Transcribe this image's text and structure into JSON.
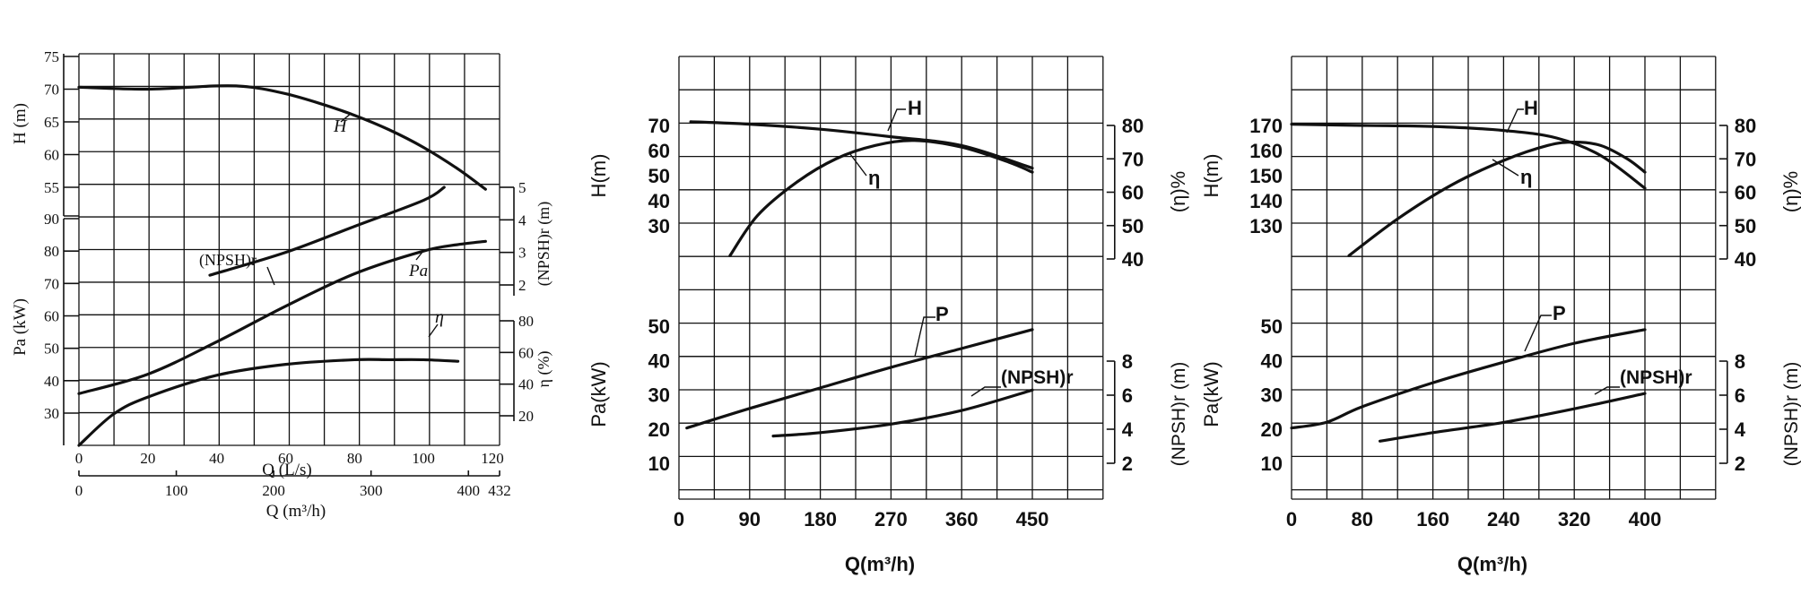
{
  "chart_data": [
    {
      "type": "line",
      "x_primary": {
        "label": "Q (L/s)",
        "range": [
          0,
          120
        ],
        "ticks": [
          0,
          20,
          40,
          60,
          80,
          100,
          120
        ]
      },
      "x_secondary": {
        "label": "Q (m³/h)",
        "ticks": [
          "0",
          "100",
          "200",
          "300",
          "400",
          "432"
        ]
      },
      "axes": {
        "H": {
          "label": "H (m)",
          "ticks": [
            55,
            60,
            65,
            70,
            75
          ],
          "range": [
            55,
            75
          ]
        },
        "Pa": {
          "label": "Pa (kW)",
          "ticks": [
            30,
            40,
            50,
            60,
            70,
            80,
            90
          ],
          "range": [
            25,
            90
          ]
        },
        "NPSH": {
          "label": "(NPSH)r (m)",
          "ticks": [
            2,
            3,
            4,
            5
          ],
          "range": [
            1,
            5
          ]
        },
        "eta": {
          "label": "η (%)",
          "ticks": [
            20,
            40,
            60,
            80
          ],
          "range": [
            0,
            80
          ]
        }
      },
      "grid": true,
      "series": [
        {
          "name": "H",
          "axis": "H",
          "x": [
            0,
            20,
            40,
            50,
            60,
            70,
            80,
            90,
            100,
            110,
            118
          ],
          "y": [
            70.3,
            70.0,
            70.5,
            70.3,
            69.3,
            67.8,
            66.0,
            63.8,
            61.1,
            57.8,
            54.7
          ]
        },
        {
          "name": "(NPSH)r",
          "axis": "NPSH",
          "x": [
            38,
            60,
            80,
            100,
            106
          ],
          "y": [
            2.3,
            3.0,
            3.8,
            4.6,
            5.0
          ]
        },
        {
          "name": "Pa",
          "axis": "Pa",
          "x": [
            0,
            20,
            40,
            60,
            80,
            100,
            110,
            118
          ],
          "y": [
            36,
            42,
            52,
            63,
            73,
            80,
            82,
            83
          ]
        },
        {
          "name": "η",
          "axis": "eta",
          "x": [
            0,
            10,
            20,
            40,
            60,
            80,
            90,
            100,
            110
          ],
          "y": [
            0,
            20,
            31,
            45,
            52,
            55,
            55,
            55,
            54
          ]
        }
      ]
    },
    {
      "type": "line",
      "x": {
        "label": "Q(m³/h)",
        "range": [
          0,
          540
        ],
        "ticks": [
          0,
          90,
          180,
          270,
          360,
          450
        ]
      },
      "axes": {
        "H": {
          "label": "H(m)",
          "ticks": [
            30,
            40,
            50,
            60,
            70
          ],
          "range": [
            30,
            70
          ]
        },
        "eta": {
          "label": "(η)%",
          "ticks": [
            40,
            50,
            60,
            70,
            80
          ],
          "range": [
            40,
            80
          ]
        },
        "Pa": {
          "label": "Pa(kW)",
          "ticks": [
            10,
            20,
            30,
            40,
            50
          ],
          "range": [
            10,
            50
          ]
        },
        "NPSH": {
          "label": "(NPSH)r (m)",
          "ticks": [
            2,
            4,
            6,
            8
          ],
          "range": [
            2,
            8
          ]
        }
      },
      "grid": true,
      "series": [
        {
          "name": "H",
          "axis": "H",
          "x": [
            15,
            90,
            180,
            270,
            360,
            450
          ],
          "y": [
            71.5,
            70.5,
            68.5,
            65.5,
            62.0,
            53.0
          ]
        },
        {
          "name": "η",
          "axis": "eta",
          "x": [
            65,
            100,
            150,
            200,
            250,
            300,
            360,
            420,
            450
          ],
          "y": [
            41,
            53,
            63,
            70,
            74,
            75.5,
            73.5,
            69,
            66
          ]
        },
        {
          "name": "P",
          "axis": "Pa",
          "x": [
            10,
            90,
            180,
            270,
            360,
            450
          ],
          "y": [
            20.3,
            26.0,
            32.0,
            38.0,
            43.5,
            49.0
          ]
        },
        {
          "name": "(NPSH)r",
          "axis": "NPSH",
          "x": [
            120,
            180,
            270,
            360,
            450
          ],
          "y": [
            3.6,
            3.8,
            4.3,
            5.1,
            6.3
          ]
        }
      ]
    },
    {
      "type": "line",
      "x": {
        "label": "Q(m³/h)",
        "range": [
          0,
          480
        ],
        "ticks": [
          0,
          80,
          160,
          240,
          320,
          400
        ]
      },
      "axes": {
        "H": {
          "label": "H(m)",
          "ticks": [
            130,
            140,
            150,
            160,
            170
          ],
          "range": [
            130,
            170
          ]
        },
        "eta": {
          "label": "(η)%",
          "ticks": [
            40,
            50,
            60,
            70,
            80
          ],
          "range": [
            40,
            80
          ]
        },
        "Pa": {
          "label": "Pa(kW)",
          "ticks": [
            10,
            20,
            30,
            40,
            50
          ],
          "range": [
            10,
            50
          ]
        },
        "NPSH": {
          "label": "(NPSH)r (m)",
          "ticks": [
            2,
            4,
            6,
            8
          ],
          "range": [
            2,
            8
          ]
        }
      },
      "grid": true,
      "series": [
        {
          "name": "H",
          "axis": "H",
          "x": [
            0,
            80,
            160,
            240,
            300,
            350,
            400
          ],
          "y": [
            170.5,
            170.0,
            169.6,
            168.0,
            165.0,
            158.0,
            145.0
          ]
        },
        {
          "name": "η",
          "axis": "eta",
          "x": [
            65,
            120,
            180,
            240,
            290,
            320,
            350,
            380,
            400
          ],
          "y": [
            41,
            52,
            62,
            69.5,
            74,
            75,
            74,
            70,
            66
          ]
        },
        {
          "name": "P",
          "axis": "Pa",
          "x": [
            0,
            40,
            80,
            160,
            240,
            320,
            400
          ],
          "y": [
            20.3,
            22.0,
            26.5,
            33.5,
            39.5,
            45.0,
            49.0
          ]
        },
        {
          "name": "(NPSH)r",
          "axis": "NPSH",
          "x": [
            100,
            160,
            240,
            320,
            400
          ],
          "y": [
            3.3,
            3.8,
            4.4,
            5.2,
            6.1
          ]
        }
      ]
    }
  ]
}
